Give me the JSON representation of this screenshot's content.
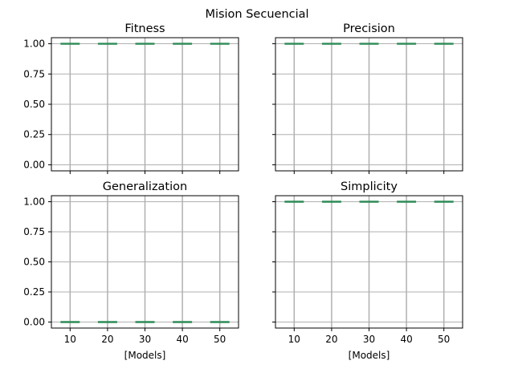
{
  "suptitle": "Mision Secuencial",
  "colors": {
    "median": "#2e8b57",
    "grid": "#b0b0b0",
    "axis": "#000000",
    "background": "#ffffff"
  },
  "chart_data": [
    {
      "type": "box",
      "title": "Fitness",
      "xlabel": "",
      "ylabel": "",
      "categories": [
        "10",
        "20",
        "30",
        "40",
        "50"
      ],
      "values": [
        1.0,
        1.0,
        1.0,
        1.0,
        1.0
      ],
      "yticks": [
        "0.00",
        "0.25",
        "0.50",
        "0.75",
        "1.00"
      ],
      "ylim": [
        -0.05,
        1.05
      ],
      "grid": true,
      "show_xticklabels": false,
      "show_yticklabels": true
    },
    {
      "type": "box",
      "title": "Precision",
      "xlabel": "",
      "ylabel": "",
      "categories": [
        "10",
        "20",
        "30",
        "40",
        "50"
      ],
      "values": [
        1.0,
        1.0,
        1.0,
        1.0,
        1.0
      ],
      "yticks": [
        "0.00",
        "0.25",
        "0.50",
        "0.75",
        "1.00"
      ],
      "ylim": [
        -0.05,
        1.05
      ],
      "grid": true,
      "show_xticklabels": false,
      "show_yticklabels": false
    },
    {
      "type": "box",
      "title": "Generalization",
      "xlabel": "[Models]",
      "ylabel": "",
      "categories": [
        "10",
        "20",
        "30",
        "40",
        "50"
      ],
      "values": [
        0.0,
        0.0,
        0.0,
        0.0,
        0.0
      ],
      "yticks": [
        "0.00",
        "0.25",
        "0.50",
        "0.75",
        "1.00"
      ],
      "ylim": [
        -0.05,
        1.05
      ],
      "grid": true,
      "show_xticklabels": true,
      "show_yticklabels": true
    },
    {
      "type": "box",
      "title": "Simplicity",
      "xlabel": "[Models]",
      "ylabel": "",
      "categories": [
        "10",
        "20",
        "30",
        "40",
        "50"
      ],
      "values": [
        1.0,
        1.0,
        1.0,
        1.0,
        1.0
      ],
      "yticks": [
        "0.00",
        "0.25",
        "0.50",
        "0.75",
        "1.00"
      ],
      "ylim": [
        -0.05,
        1.05
      ],
      "grid": true,
      "show_xticklabels": true,
      "show_yticklabels": false
    }
  ]
}
